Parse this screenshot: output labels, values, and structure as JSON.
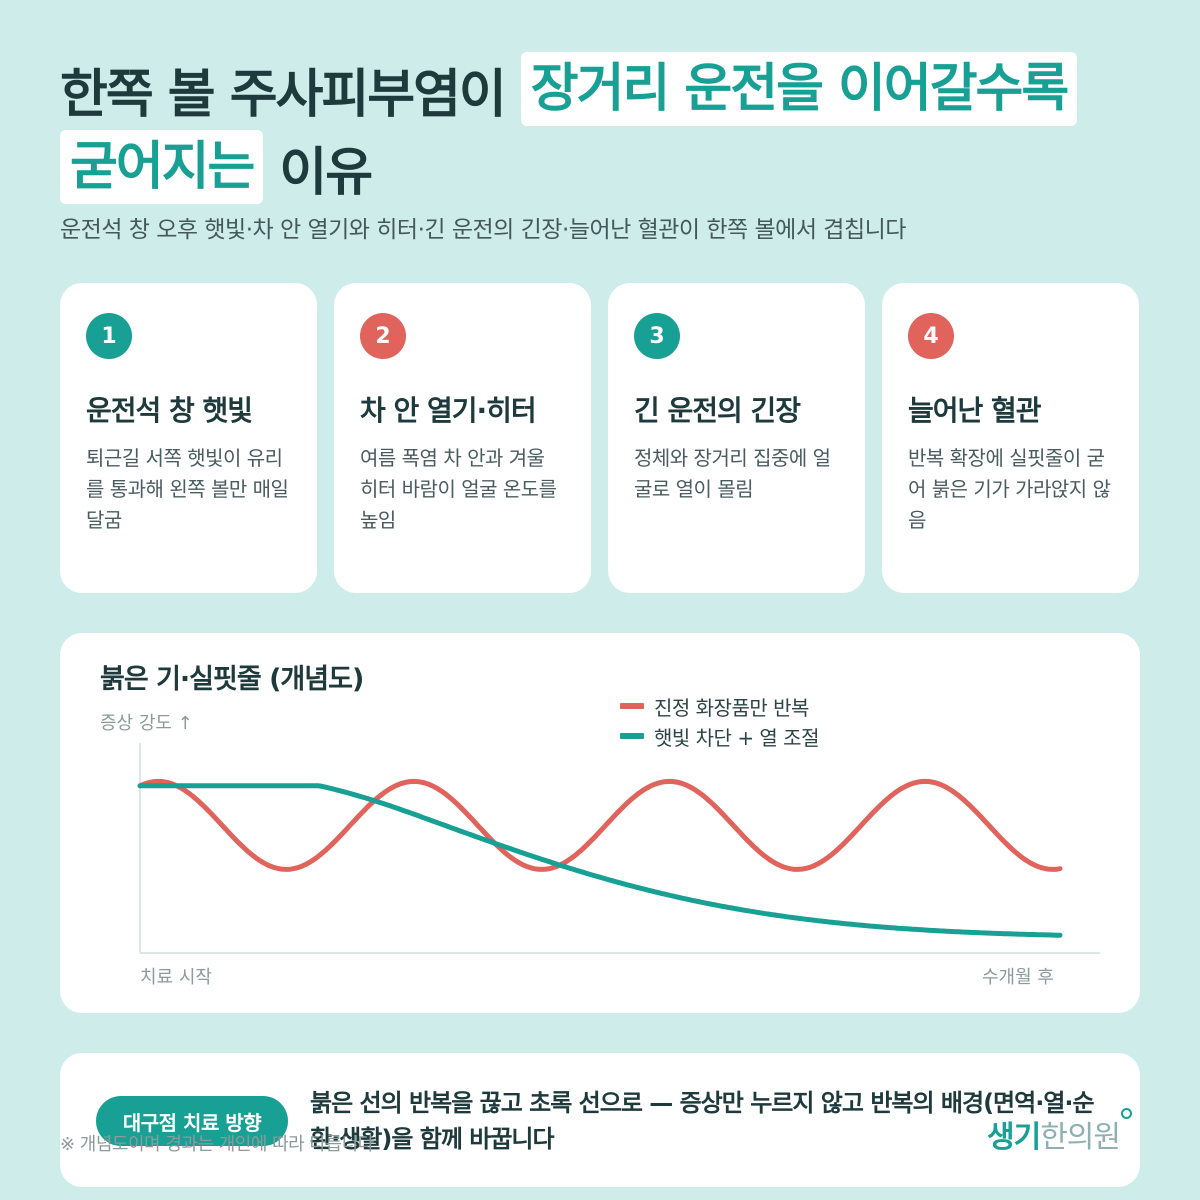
{
  "title": {
    "line1_dark": "한쪽 볼 주사피부염이",
    "line1_highlight": "장거리 운전을 이어갈수록",
    "line2_highlight": "굳어지는",
    "line2_dark": "이유"
  },
  "subtitle": "운전석 창 오후 햇빛·차 안 열기와 히터·긴 운전의 긴장·늘어난 혈관이 한쪽 볼에서 겹칩니다",
  "cards": [
    {
      "num": "1",
      "title": "운전석 창 햇빛",
      "body": "퇴근길 서쪽 햇빛이 유리를 통과해 왼쪽 볼만 매일 달굼",
      "color": "#17a093"
    },
    {
      "num": "2",
      "title": "차 안 열기·히터",
      "body": "여름 폭염 차 안과 겨울 히터 바람이 얼굴 온도를 높임",
      "color": "#e0635c"
    },
    {
      "num": "3",
      "title": "긴 운전의 긴장",
      "body": "정체와 장거리 집중에 얼굴로 열이 몰림",
      "color": "#17a093"
    },
    {
      "num": "4",
      "title": "늘어난 혈관",
      "body": "반복 확장에 실핏줄이 굳어 붉은 기가 가라앉지 않음",
      "color": "#e0635c"
    }
  ],
  "chart": {
    "title": "붉은 기·실핏줄 (개념도)",
    "y_label": "증상 강도 ↑",
    "x_start": "치료 시작",
    "x_end": "수개월 후"
  },
  "chart_data": {
    "type": "line",
    "title": "붉은 기·실핏줄 (개념도)",
    "ylabel": "증상 강도 ↑",
    "xlabel": "",
    "x_ticks": [
      "치료 시작",
      "수개월 후"
    ],
    "grid": false,
    "legend_position": "top-right",
    "series": [
      {
        "name": "진정 화장품만 반복",
        "color": "#e0635c",
        "pattern": "oscillating",
        "start": 0.76,
        "mid": 0.58,
        "amplitude": 0.2,
        "cycles": 3.6
      },
      {
        "name": "햇빛 차단 + 열 조절",
        "color": "#17a093",
        "pattern": "decreasing",
        "start": 0.76,
        "end": 0.07
      }
    ]
  },
  "bottom": {
    "pill": "대구점 치료 방향",
    "text": "붉은 선의 반복을 끊고 초록 선으로 — 증상만 누르지 않고 반복의 배경(면역·열·순환·생활)을 함께 바꿉니다"
  },
  "footnote": "※ 개념도이며 경과는 개인에 따라 다릅니다",
  "logo": {
    "part1": "생기",
    "part2": "한의원"
  },
  "colors": {
    "accent": "#17a093",
    "red": "#e0635c",
    "background": "#cdecea"
  }
}
